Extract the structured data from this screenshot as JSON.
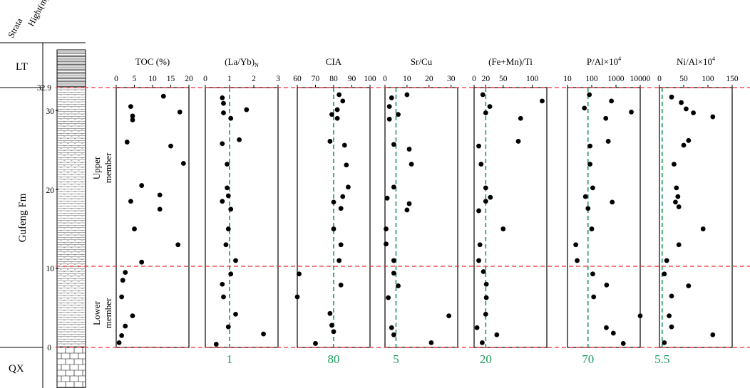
{
  "colors": {
    "ink": "#000000",
    "boundary": "#e8323a",
    "threshold": "#1a9a5a"
  },
  "labels": {
    "strata": "Strata",
    "height": "Hight(m)",
    "formation": "Gufeng Fm",
    "lt": "LT",
    "qx": "QX",
    "upper": "Upper",
    "upper2": "member",
    "lower": "Lower",
    "lower2": "member",
    "h_ticks": [
      "32.9",
      "30",
      "20",
      "10",
      "0"
    ]
  },
  "chart_data": [
    {
      "type": "scatter",
      "title": "TOC (%)",
      "xlim": [
        0,
        20
      ],
      "ylim": [
        0,
        32.9
      ],
      "ticks": [
        "0",
        "5",
        "10",
        "15",
        "20"
      ],
      "tick_values": [
        0,
        5,
        10,
        15,
        20
      ],
      "threshold": null,
      "threshold_label": "",
      "points": [
        [
          13,
          31.8
        ],
        [
          4,
          30.5
        ],
        [
          17.5,
          29.8
        ],
        [
          4.5,
          29.3
        ],
        [
          4.5,
          28.8
        ],
        [
          3,
          26
        ],
        [
          15,
          25.5
        ],
        [
          18.5,
          23.3
        ],
        [
          7,
          20.5
        ],
        [
          12,
          19.3
        ],
        [
          4,
          18.5
        ],
        [
          12,
          17.5
        ],
        [
          5,
          15
        ],
        [
          17,
          13
        ],
        [
          7,
          10.8
        ],
        [
          2.5,
          9.5
        ],
        [
          1.8,
          8.5
        ],
        [
          1.5,
          6.4
        ],
        [
          4.5,
          4
        ],
        [
          2.5,
          2.7
        ],
        [
          1.5,
          1.5
        ],
        [
          0.8,
          0.6
        ]
      ]
    },
    {
      "type": "scatter",
      "title": "(La/Yb)",
      "title_sub": "N",
      "xlim": [
        0,
        3
      ],
      "ylim": [
        0,
        32.9
      ],
      "ticks": [
        "0",
        "1",
        "2",
        "3"
      ],
      "tick_values": [
        0,
        1,
        2,
        3
      ],
      "threshold": 1,
      "threshold_label": "1",
      "points": [
        [
          0.7,
          31.6
        ],
        [
          0.75,
          30.9
        ],
        [
          1.7,
          30.1
        ],
        [
          0.75,
          29.7
        ],
        [
          1.05,
          29
        ],
        [
          1.4,
          26.3
        ],
        [
          0.7,
          25.8
        ],
        [
          0.9,
          23.2
        ],
        [
          0.9,
          20.2
        ],
        [
          0.95,
          19.2
        ],
        [
          0.7,
          18.5
        ],
        [
          1.05,
          17.5
        ],
        [
          0.95,
          15
        ],
        [
          0.85,
          13
        ],
        [
          1.25,
          11
        ],
        [
          1.05,
          9.3
        ],
        [
          0.7,
          8
        ],
        [
          0.75,
          6.4
        ],
        [
          1.25,
          4.2
        ],
        [
          0.95,
          2.6
        ],
        [
          2.4,
          1.7
        ],
        [
          0.45,
          0.4
        ]
      ]
    },
    {
      "type": "scatter",
      "title": "CIA",
      "xlim": [
        60,
        100
      ],
      "ylim": [
        0,
        32.9
      ],
      "ticks": [
        "60",
        "70",
        "80",
        "90",
        "100"
      ],
      "tick_values": [
        60,
        70,
        80,
        90,
        100
      ],
      "threshold": 80,
      "threshold_label": "80",
      "points": [
        [
          83,
          32
        ],
        [
          85,
          31.2
        ],
        [
          82,
          30.1
        ],
        [
          79,
          29.5
        ],
        [
          82,
          29
        ],
        [
          78,
          26.1
        ],
        [
          86,
          25.6
        ],
        [
          87,
          23.1
        ],
        [
          88,
          20.3
        ],
        [
          85,
          19.1
        ],
        [
          80,
          18.4
        ],
        [
          84,
          17.6
        ],
        [
          80,
          15
        ],
        [
          84,
          13
        ],
        [
          83,
          11
        ],
        [
          61,
          9.3
        ],
        [
          84,
          7.9
        ],
        [
          60,
          6.4
        ],
        [
          78,
          4.3
        ],
        [
          79,
          2.8
        ],
        [
          80,
          2
        ],
        [
          70,
          0.5
        ]
      ]
    },
    {
      "type": "scatter",
      "title": "Sr/Cu",
      "xlim": [
        0,
        33
      ],
      "ylim": [
        0,
        32.9
      ],
      "ticks": [
        "0",
        "10",
        "20",
        "30"
      ],
      "tick_values": [
        0,
        10,
        20,
        30
      ],
      "threshold": 5,
      "threshold_label": "5",
      "points": [
        [
          10,
          32
        ],
        [
          3,
          31.6
        ],
        [
          2,
          30.5
        ],
        [
          6,
          29.5
        ],
        [
          2,
          28.9
        ],
        [
          4,
          25.7
        ],
        [
          11,
          25.1
        ],
        [
          12,
          23.2
        ],
        [
          4,
          20.3
        ],
        [
          1,
          18.9
        ],
        [
          11,
          18.2
        ],
        [
          10,
          17.4
        ],
        [
          0.5,
          15
        ],
        [
          0.5,
          13.1
        ],
        [
          4,
          11
        ],
        [
          4,
          9.4
        ],
        [
          6,
          7.8
        ],
        [
          1.5,
          6.3
        ],
        [
          29,
          4
        ],
        [
          3,
          2.5
        ],
        [
          4,
          1.6
        ],
        [
          21,
          0.6
        ]
      ]
    },
    {
      "type": "scatter",
      "title": "(Fe+Mn)/Ti",
      "xlim": [
        0,
        125
      ],
      "ylim": [
        0,
        32.9
      ],
      "ticks": [
        "0",
        "20",
        "50",
        "100"
      ],
      "tick_values": [
        0,
        20,
        50,
        100
      ],
      "threshold": 20,
      "threshold_label": "20",
      "points": [
        [
          15,
          32
        ],
        [
          117,
          31.2
        ],
        [
          27,
          30.5
        ],
        [
          20,
          29.7
        ],
        [
          80,
          29
        ],
        [
          8,
          25.5
        ],
        [
          76,
          26.1
        ],
        [
          12,
          23.2
        ],
        [
          20,
          20.2
        ],
        [
          28,
          19
        ],
        [
          20,
          18.5
        ],
        [
          8,
          17.3
        ],
        [
          50,
          15
        ],
        [
          10,
          13
        ],
        [
          8,
          11
        ],
        [
          16,
          9.6
        ],
        [
          21,
          8
        ],
        [
          21,
          6.3
        ],
        [
          20,
          4.2
        ],
        [
          5,
          2.5
        ],
        [
          39,
          1.6
        ],
        [
          14,
          0.6
        ]
      ]
    },
    {
      "type": "scatter",
      "title": "P/Al×10",
      "title_sup": "4",
      "xscale": "log",
      "xlim": [
        10,
        10000
      ],
      "ylim": [
        0,
        32.9
      ],
      "ticks": [
        "10",
        "100",
        "1000",
        "10000"
      ],
      "tick_values": [
        10,
        100,
        1000,
        10000
      ],
      "threshold": 70,
      "threshold_label": "70",
      "points": [
        [
          80,
          32
        ],
        [
          650,
          31.2
        ],
        [
          50,
          30.3
        ],
        [
          4300,
          29.8
        ],
        [
          380,
          29
        ],
        [
          480,
          26.1
        ],
        [
          85,
          25.5
        ],
        [
          85,
          23.2
        ],
        [
          110,
          20.2
        ],
        [
          55,
          19.1
        ],
        [
          700,
          18.4
        ],
        [
          70,
          17.6
        ],
        [
          100,
          15
        ],
        [
          22,
          13
        ],
        [
          25,
          11
        ],
        [
          110,
          9.3
        ],
        [
          410,
          7.9
        ],
        [
          120,
          6.4
        ],
        [
          10000,
          4
        ],
        [
          400,
          2.5
        ],
        [
          780,
          1.8
        ],
        [
          2000,
          0.5
        ]
      ]
    },
    {
      "type": "scatter",
      "title": "Ni/Al×10",
      "title_sup": "4",
      "xlim": [
        0,
        150
      ],
      "ylim": [
        0,
        32.9
      ],
      "ticks": [
        "0",
        "50",
        "100",
        "150"
      ],
      "tick_values": [
        0,
        50,
        100,
        150
      ],
      "threshold": 5.5,
      "threshold_label": "5.5",
      "points": [
        [
          25,
          31.7
        ],
        [
          45,
          31
        ],
        [
          55,
          30.2
        ],
        [
          70,
          29.7
        ],
        [
          110,
          29.2
        ],
        [
          60,
          26.2
        ],
        [
          50,
          25.6
        ],
        [
          30,
          23.2
        ],
        [
          35,
          20.2
        ],
        [
          38,
          19.1
        ],
        [
          33,
          18.4
        ],
        [
          40,
          17.8
        ],
        [
          90,
          15
        ],
        [
          40,
          13
        ],
        [
          15,
          11
        ],
        [
          10,
          9.3
        ],
        [
          60,
          7.8
        ],
        [
          25,
          6.5
        ],
        [
          20,
          4
        ],
        [
          25,
          2.6
        ],
        [
          110,
          1.6
        ],
        [
          10,
          0.6
        ]
      ]
    }
  ]
}
